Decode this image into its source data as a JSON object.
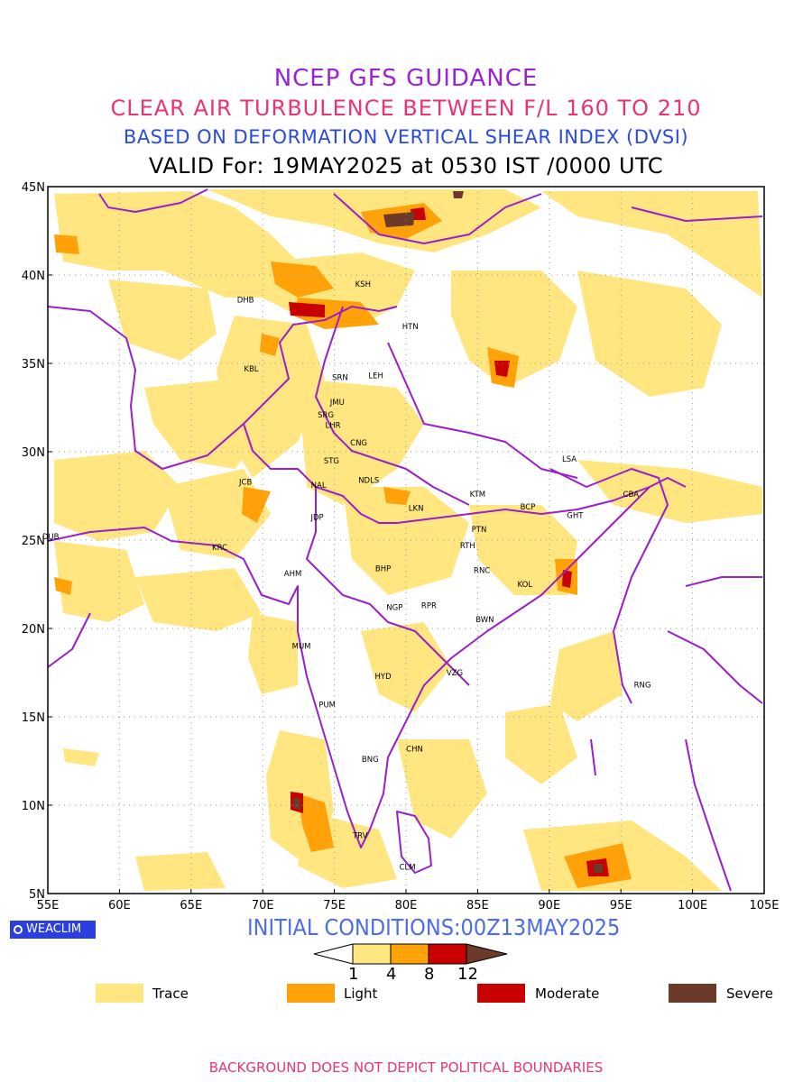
{
  "header": {
    "line1": "NCEP GFS GUIDANCE",
    "line2": "CLEAR AIR TURBULENCE BETWEEN F/L 160 TO 210",
    "line3": "BASED ON DEFORMATION VERTICAL SHEAR INDEX (DVSI)",
    "line4": "VALID For: 19MAY2025 at 0530 IST /0000 UTC"
  },
  "map": {
    "lon_ticks": [
      "55E",
      "60E",
      "65E",
      "70E",
      "75E",
      "80E",
      "85E",
      "90E",
      "95E",
      "100E",
      "105E"
    ],
    "lat_ticks": [
      "5N",
      "10N",
      "15N",
      "20N",
      "25N",
      "30N",
      "35N",
      "40N",
      "45N"
    ],
    "lon_range": [
      55,
      105
    ],
    "lat_range": [
      5,
      45
    ],
    "boundary_color": "#9b1fc9",
    "cities": [
      {
        "name": "KSH",
        "lon": 77.0,
        "lat": 39.5
      },
      {
        "name": "DHB",
        "lon": 68.8,
        "lat": 38.6
      },
      {
        "name": "HTN",
        "lon": 80.3,
        "lat": 37.1
      },
      {
        "name": "KBL",
        "lon": 69.2,
        "lat": 34.7
      },
      {
        "name": "SRN",
        "lon": 75.4,
        "lat": 34.2
      },
      {
        "name": "LEH",
        "lon": 77.9,
        "lat": 34.3
      },
      {
        "name": "JMU",
        "lon": 75.2,
        "lat": 32.8
      },
      {
        "name": "SRG",
        "lon": 74.4,
        "lat": 32.1
      },
      {
        "name": "LHR",
        "lon": 74.9,
        "lat": 31.5
      },
      {
        "name": "CNG",
        "lon": 76.7,
        "lat": 30.5
      },
      {
        "name": "STG",
        "lon": 74.8,
        "lat": 29.5
      },
      {
        "name": "JCB",
        "lon": 68.8,
        "lat": 28.3
      },
      {
        "name": "NAL",
        "lon": 73.9,
        "lat": 28.1
      },
      {
        "name": "NDLS",
        "lon": 77.4,
        "lat": 28.4
      },
      {
        "name": "LSA",
        "lon": 91.4,
        "lat": 29.6
      },
      {
        "name": "KTM",
        "lon": 85.0,
        "lat": 27.6
      },
      {
        "name": "BCP",
        "lon": 88.5,
        "lat": 26.9
      },
      {
        "name": "CBA",
        "lon": 95.7,
        "lat": 27.6
      },
      {
        "name": "GHT",
        "lon": 91.8,
        "lat": 26.4
      },
      {
        "name": "LKN",
        "lon": 80.7,
        "lat": 26.8
      },
      {
        "name": "JDP",
        "lon": 73.8,
        "lat": 26.3
      },
      {
        "name": "PTN",
        "lon": 85.1,
        "lat": 25.6
      },
      {
        "name": "DUB",
        "lon": 55.2,
        "lat": 25.2
      },
      {
        "name": "KRC",
        "lon": 67.0,
        "lat": 24.6
      },
      {
        "name": "RTH",
        "lon": 84.3,
        "lat": 24.7
      },
      {
        "name": "RNC",
        "lon": 85.3,
        "lat": 23.3
      },
      {
        "name": "AHM",
        "lon": 72.1,
        "lat": 23.1
      },
      {
        "name": "BHP",
        "lon": 78.4,
        "lat": 23.4
      },
      {
        "name": "KOL",
        "lon": 88.3,
        "lat": 22.5
      },
      {
        "name": "NGP",
        "lon": 79.2,
        "lat": 21.2
      },
      {
        "name": "RPR",
        "lon": 81.6,
        "lat": 21.3
      },
      {
        "name": "BWN",
        "lon": 85.5,
        "lat": 20.5
      },
      {
        "name": "MUM",
        "lon": 72.7,
        "lat": 19.0
      },
      {
        "name": "HYD",
        "lon": 78.4,
        "lat": 17.3
      },
      {
        "name": "VZG",
        "lon": 83.4,
        "lat": 17.5
      },
      {
        "name": "RNG",
        "lon": 96.5,
        "lat": 16.8
      },
      {
        "name": "PUM",
        "lon": 74.5,
        "lat": 15.7
      },
      {
        "name": "CHN",
        "lon": 80.6,
        "lat": 13.2
      },
      {
        "name": "BNG",
        "lon": 77.5,
        "lat": 12.6
      },
      {
        "name": "TRV",
        "lon": 76.8,
        "lat": 8.3
      },
      {
        "name": "CLM",
        "lon": 80.1,
        "lat": 6.5
      }
    ]
  },
  "initial_conditions": "INITIAL CONDITIONS:00Z13MAY2025",
  "colorbar": {
    "ticks": [
      "1",
      "4",
      "8",
      "12"
    ],
    "colors": [
      "#ffe680",
      "#ffa20a",
      "#c80000",
      "#6b3a2a"
    ]
  },
  "legend": [
    {
      "label": "Trace",
      "color": "#ffe680"
    },
    {
      "label": "Light",
      "color": "#ffa20a"
    },
    {
      "label": "Moderate",
      "color": "#c80000"
    },
    {
      "label": "Severe",
      "color": "#6b3a2a"
    }
  ],
  "logo_text": "WEACLIM",
  "footer": "BACKGROUND DOES NOT DEPICT POLITICAL BOUNDARIES"
}
